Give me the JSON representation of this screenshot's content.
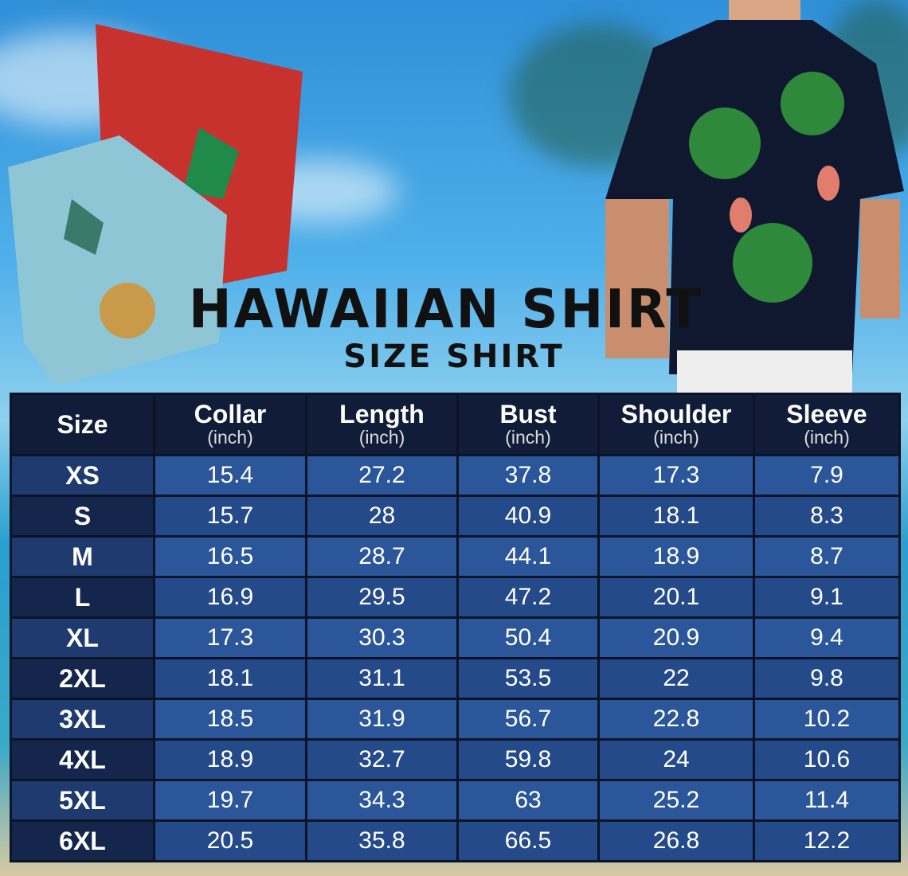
{
  "title": "HAWAIIAN SHIRT",
  "subtitle": "SIZE SHIRT",
  "table": {
    "headers": [
      {
        "label": "Size",
        "unit": ""
      },
      {
        "label": "Collar",
        "unit": "(inch)"
      },
      {
        "label": "Length",
        "unit": "(inch)"
      },
      {
        "label": "Bust",
        "unit": "(inch)"
      },
      {
        "label": "Shoulder",
        "unit": "(inch)"
      },
      {
        "label": "Sleeve",
        "unit": "(inch)"
      }
    ],
    "rows": [
      [
        "XS",
        "15.4",
        "27.2",
        "37.8",
        "17.3",
        "7.9"
      ],
      [
        "S",
        "15.7",
        "28",
        "40.9",
        "18.1",
        "8.3"
      ],
      [
        "M",
        "16.5",
        "28.7",
        "44.1",
        "18.9",
        "8.7"
      ],
      [
        "L",
        "16.9",
        "29.5",
        "47.2",
        "20.1",
        "9.1"
      ],
      [
        "XL",
        "17.3",
        "30.3",
        "50.4",
        "20.9",
        "9.4"
      ],
      [
        "2XL",
        "18.1",
        "31.1",
        "53.5",
        "22",
        "9.8"
      ],
      [
        "3XL",
        "18.5",
        "31.9",
        "56.7",
        "22.8",
        "10.2"
      ],
      [
        "4XL",
        "18.9",
        "32.7",
        "59.8",
        "24",
        "10.6"
      ],
      [
        "5XL",
        "19.7",
        "34.3",
        "63",
        "25.2",
        "11.4"
      ],
      [
        "6XL",
        "20.5",
        "35.8",
        "66.5",
        "26.8",
        "12.2"
      ]
    ]
  },
  "colors": {
    "header": "#111c38",
    "size_cell": "#1e3a6e",
    "value_cell": "#2b579a",
    "title": "#111111"
  }
}
